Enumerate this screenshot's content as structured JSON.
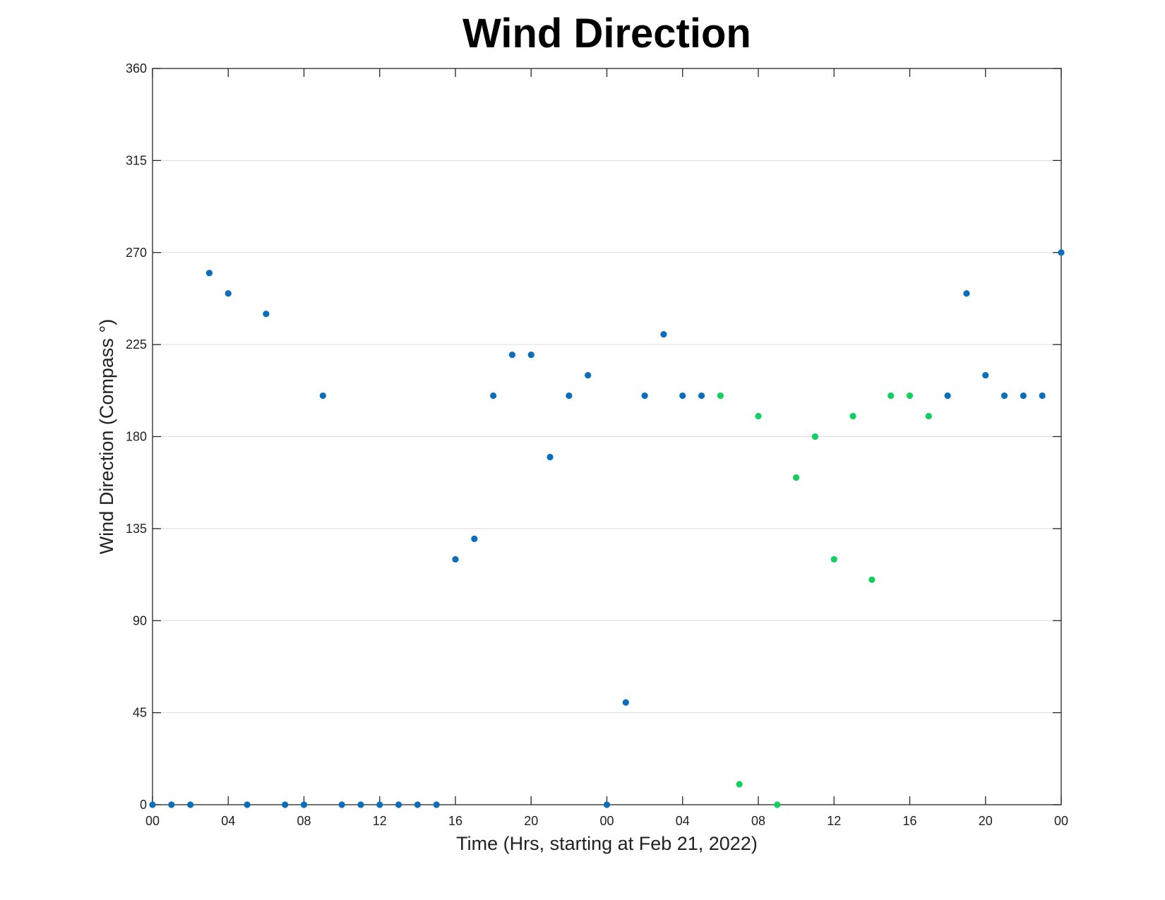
{
  "chart_data": {
    "type": "scatter",
    "title": "Wind Direction",
    "xlabel": "Time (Hrs, starting at Feb 21, 2022)",
    "ylabel": "Wind Direction (Compass °)",
    "xlim": [
      0,
      48
    ],
    "ylim": [
      0,
      360
    ],
    "x_unit": "hours",
    "x_tick_values": [
      0,
      4,
      8,
      12,
      16,
      20,
      24,
      28,
      32,
      36,
      40,
      44,
      48
    ],
    "x_tick_labels": [
      "00",
      "04",
      "08",
      "12",
      "16",
      "20",
      "00",
      "04",
      "08",
      "12",
      "16",
      "20",
      "00"
    ],
    "y_tick_values": [
      0,
      45,
      90,
      135,
      180,
      225,
      270,
      315,
      360
    ],
    "y_tick_labels": [
      "0",
      "45",
      "90",
      "135",
      "180",
      "225",
      "270",
      "315",
      "360"
    ],
    "grid": "horizontal",
    "colors": {
      "blue": "#0a6ebd",
      "green": "#13cf5f"
    },
    "series": [
      {
        "color": "blue",
        "x": [
          0,
          1,
          2,
          3,
          4,
          5,
          6,
          7,
          8,
          9,
          10,
          11,
          12,
          13,
          14,
          15,
          16,
          17,
          18,
          19,
          20,
          21,
          22,
          23,
          24,
          25,
          26,
          27,
          28,
          29,
          42,
          43,
          44,
          45,
          46,
          47,
          48
        ],
        "y": [
          0,
          0,
          0,
          260,
          250,
          0,
          240,
          0,
          0,
          200,
          0,
          0,
          0,
          0,
          0,
          0,
          120,
          130,
          200,
          220,
          220,
          170,
          200,
          210,
          0,
          50,
          200,
          230,
          200,
          200,
          200,
          250,
          210,
          200,
          200,
          200,
          270
        ]
      },
      {
        "color": "green",
        "x": [
          30,
          31,
          32,
          33,
          34,
          35,
          36,
          37,
          38,
          39,
          40,
          41
        ],
        "y": [
          200,
          10,
          190,
          0,
          160,
          180,
          120,
          190,
          110,
          200,
          200,
          190
        ]
      }
    ]
  }
}
